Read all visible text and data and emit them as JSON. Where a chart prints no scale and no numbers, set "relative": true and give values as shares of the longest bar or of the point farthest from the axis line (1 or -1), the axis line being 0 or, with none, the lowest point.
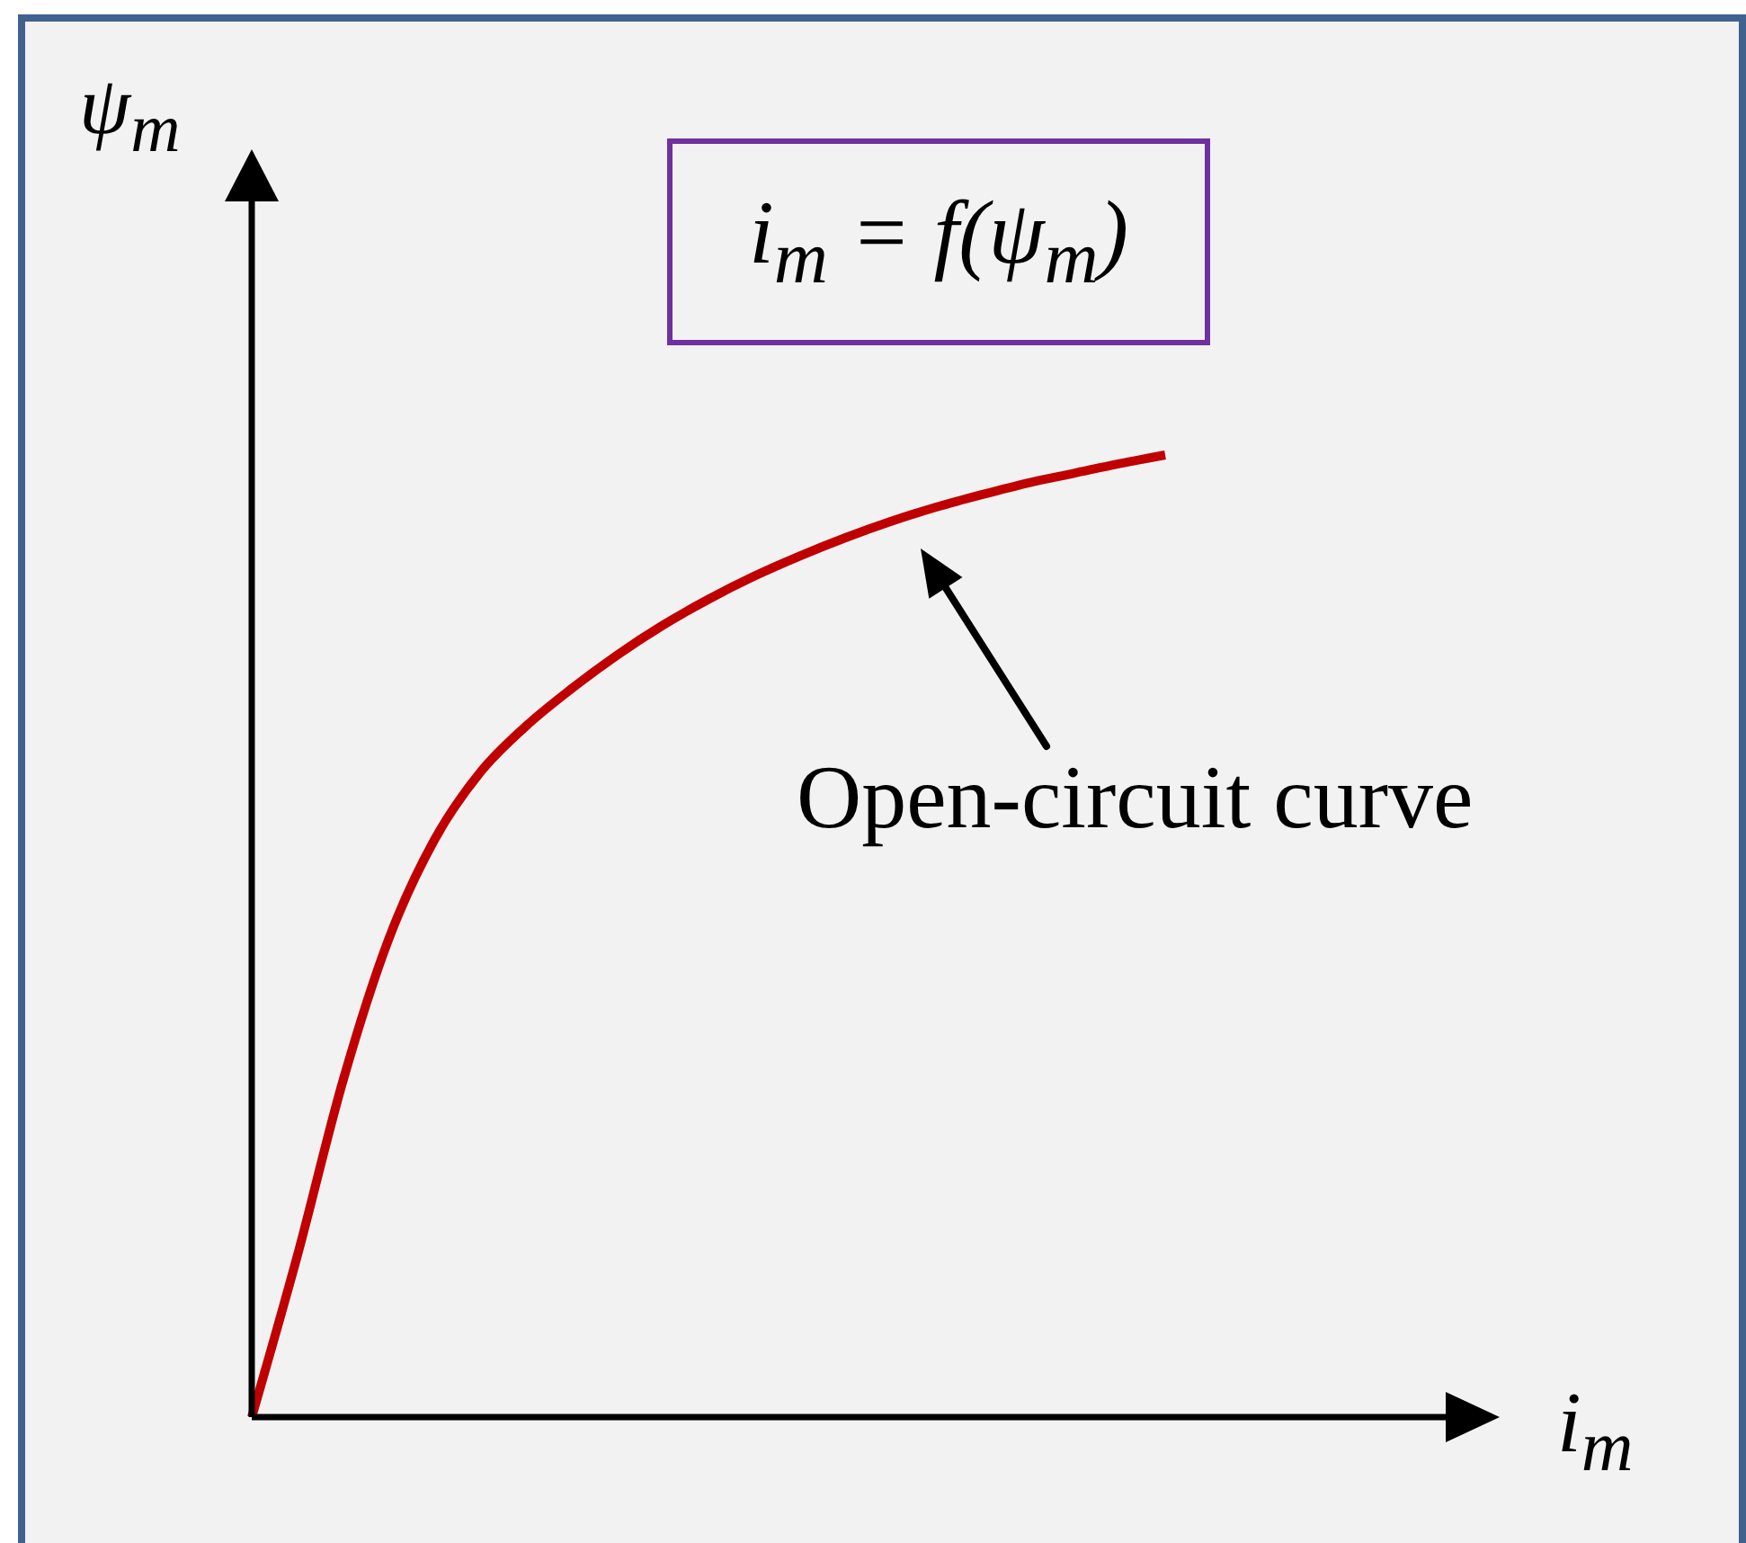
{
  "chart_data": {
    "type": "line",
    "xlabel": "i$_{m}$",
    "ylabel": "ψ$_{m}$",
    "annotations": [
      "i$_{m}$ = f(ψ$_{m}$)",
      "Open-circuit curve"
    ],
    "categories": [
      null,
      null,
      null,
      null,
      null,
      null,
      null,
      null,
      null,
      null,
      null,
      null,
      null,
      null,
      null,
      null,
      null,
      null,
      null,
      null,
      null
    ],
    "series": [
      {
        "color": "#c00000",
        "values": [
          0,
          0.168,
          0.35,
          0.497,
          0.6,
          0.67,
          0.718,
          0.757,
          0.792,
          0.823,
          0.85,
          0.874,
          0.895,
          0.914,
          0.931,
          0.946,
          0.959,
          0.971,
          0.981,
          0.991,
          1
        ]
      }
    ],
    "relative": true,
    "line_style": "solid"
  }
}
